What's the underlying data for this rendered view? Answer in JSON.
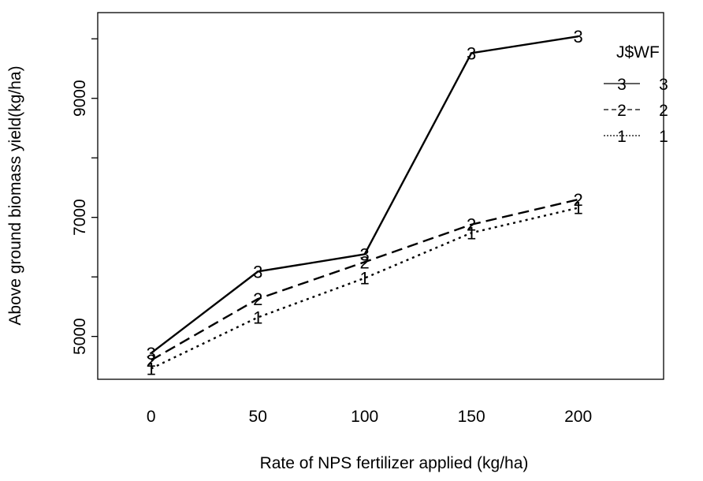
{
  "chart_data": {
    "type": "line",
    "title": "",
    "xlabel": "Rate of NPS fertilizer applied (kg/ha)",
    "ylabel": "Above ground biomass yield(kg/ha)",
    "x": [
      0,
      50,
      100,
      150,
      200
    ],
    "x_ticks": [
      "0",
      "50",
      "100",
      "150",
      "200"
    ],
    "y_ticks": [
      "5000",
      "7000",
      "9000"
    ],
    "y_tick_values": [
      5000,
      7000,
      9000
    ],
    "xlim": [
      -25,
      240
    ],
    "ylim": [
      4280,
      10440
    ],
    "grid": false,
    "legend": {
      "title": "J$WF",
      "placement": "top-right",
      "entries": [
        {
          "symbol": "3",
          "label": "3",
          "dash": "solid"
        },
        {
          "symbol": "2",
          "label": "2",
          "dash": "dashed"
        },
        {
          "symbol": "1",
          "label": "1",
          "dash": "dotted"
        }
      ]
    },
    "series": [
      {
        "name": "3",
        "symbol": "3",
        "dash": "solid",
        "values": [
          4720,
          6090,
          6380,
          9760,
          10040
        ]
      },
      {
        "name": "2",
        "symbol": "2",
        "dash": "dashed",
        "values": [
          4600,
          5630,
          6250,
          6880,
          7300
        ]
      },
      {
        "name": "1",
        "symbol": "1",
        "dash": "dotted",
        "values": [
          4460,
          5320,
          5980,
          6740,
          7160
        ]
      }
    ]
  }
}
